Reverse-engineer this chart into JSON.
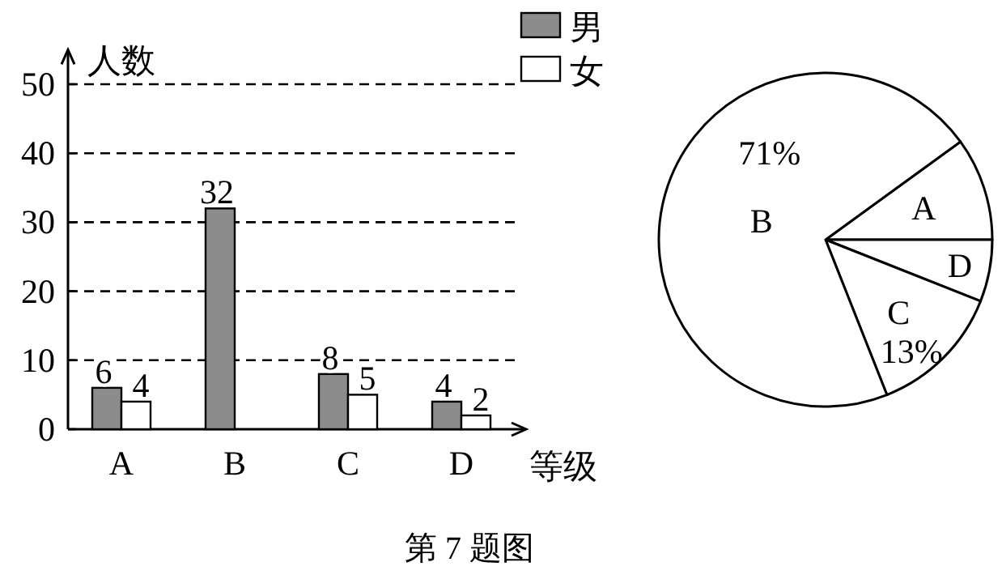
{
  "chart_data": [
    {
      "type": "bar",
      "ylabel": "人数",
      "xlabel": "等级",
      "categories": [
        "A",
        "B",
        "C",
        "D"
      ],
      "series": [
        {
          "name": "男",
          "color": "#8c8c8c",
          "values": [
            6,
            32,
            8,
            4
          ]
        },
        {
          "name": "女",
          "color": "#ffffff",
          "values": [
            4,
            null,
            5,
            2
          ]
        }
      ],
      "ylim": [
        0,
        55
      ],
      "yticks": [
        0,
        10,
        20,
        30,
        40,
        50
      ],
      "grid": "y",
      "legend": "top right",
      "data_labels": true,
      "annotations": [
        "第 7 题图"
      ]
    },
    {
      "type": "pie",
      "categories": [
        "A",
        "D",
        "C",
        "B"
      ],
      "values": [
        10,
        6,
        13,
        71
      ],
      "colors": [
        "#ffffff",
        "#ffffff",
        "#ffffff",
        "#ffffff"
      ],
      "value_labels": [
        null,
        null,
        "13%",
        "71%"
      ]
    }
  ]
}
